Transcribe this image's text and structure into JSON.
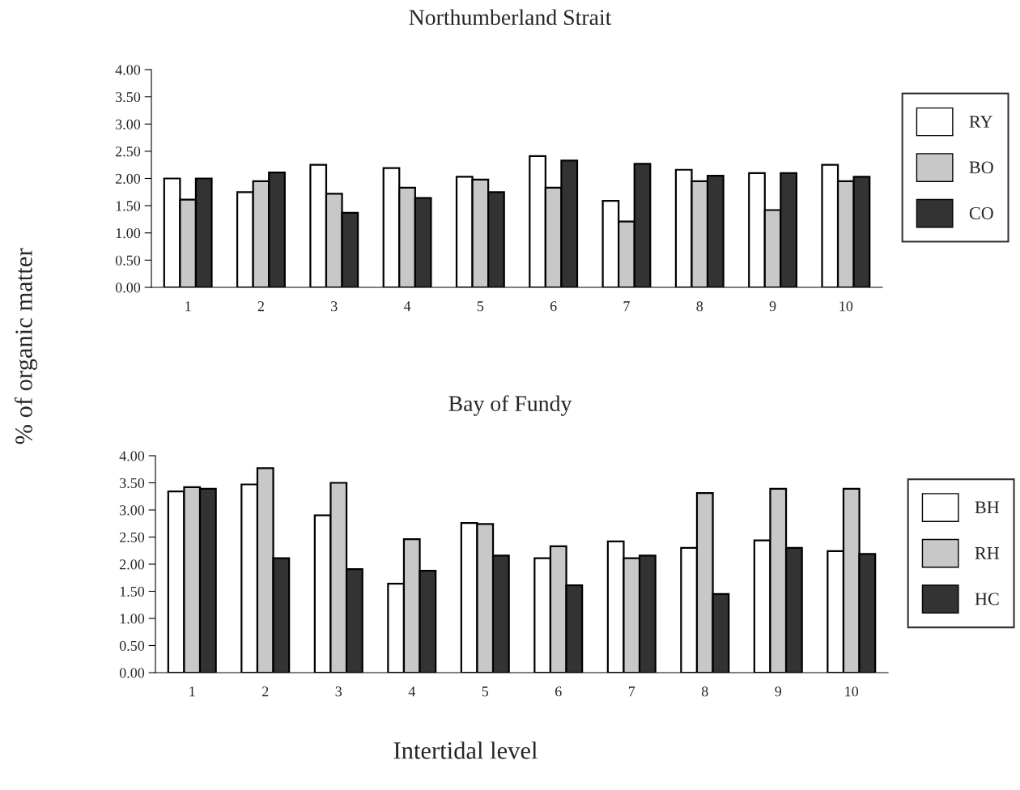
{
  "chart_data": [
    {
      "type": "bar",
      "title": "Northumberland Strait",
      "ylabel": "% of organic matter",
      "categories": [
        "1",
        "2",
        "3",
        "4",
        "5",
        "6",
        "7",
        "8",
        "9",
        "10"
      ],
      "series": [
        {
          "name": "RY",
          "color": "#ffffff",
          "values": [
            2.0,
            1.75,
            2.25,
            2.19,
            2.03,
            2.41,
            1.59,
            2.16,
            2.1,
            2.25
          ]
        },
        {
          "name": "BO",
          "color": "#c8c8c8",
          "values": [
            1.61,
            1.95,
            1.72,
            1.83,
            1.98,
            1.83,
            1.21,
            1.95,
            1.42,
            1.95
          ]
        },
        {
          "name": "CO",
          "color": "#333333",
          "values": [
            2.0,
            2.11,
            1.37,
            1.64,
            1.75,
            2.33,
            2.27,
            2.05,
            2.1,
            2.03
          ]
        }
      ],
      "ylim": [
        0,
        4
      ],
      "yticks": [
        {
          "value": 0,
          "label": "0.00"
        },
        {
          "value": 0.5,
          "label": "0.50"
        },
        {
          "value": 1,
          "label": "1.00"
        },
        {
          "value": 1.5,
          "label": "1.50"
        },
        {
          "value": 2,
          "label": "2.00"
        },
        {
          "value": 2.5,
          "label": "2.50"
        },
        {
          "value": 3,
          "label": "3.00"
        },
        {
          "value": 3.5,
          "label": "3.50"
        },
        {
          "value": 4,
          "label": "4.00"
        }
      ],
      "grid": false,
      "legend": "right"
    },
    {
      "type": "bar",
      "title": "Bay of Fundy",
      "xlabel": "Intertidal level",
      "categories": [
        "1",
        "2",
        "3",
        "4",
        "5",
        "6",
        "7",
        "8",
        "9",
        "10"
      ],
      "series": [
        {
          "name": "BH",
          "color": "#ffffff",
          "values": [
            3.34,
            3.47,
            2.9,
            1.64,
            2.76,
            2.11,
            2.42,
            2.3,
            2.44,
            2.24
          ]
        },
        {
          "name": "RH",
          "color": "#c8c8c8",
          "values": [
            3.42,
            3.77,
            3.5,
            2.46,
            2.74,
            2.33,
            2.11,
            3.31,
            3.39,
            3.39
          ]
        },
        {
          "name": "HC",
          "color": "#333333",
          "values": [
            3.39,
            2.11,
            1.91,
            1.88,
            2.16,
            1.61,
            2.16,
            1.45,
            2.3,
            2.19
          ]
        }
      ],
      "ylim": [
        0,
        4
      ],
      "yticks": [
        {
          "value": 0,
          "label": "0.00"
        },
        {
          "value": 0.5,
          "label": "0.50"
        },
        {
          "value": 1,
          "label": "1.00"
        },
        {
          "value": 1.5,
          "label": "1.50"
        },
        {
          "value": 2,
          "label": "2.00"
        },
        {
          "value": 2.5,
          "label": "2.50"
        },
        {
          "value": 3,
          "label": "3.00"
        },
        {
          "value": 3.5,
          "label": "3.50"
        },
        {
          "value": 4,
          "label": "4.00"
        }
      ],
      "grid": false,
      "legend": "right"
    }
  ]
}
